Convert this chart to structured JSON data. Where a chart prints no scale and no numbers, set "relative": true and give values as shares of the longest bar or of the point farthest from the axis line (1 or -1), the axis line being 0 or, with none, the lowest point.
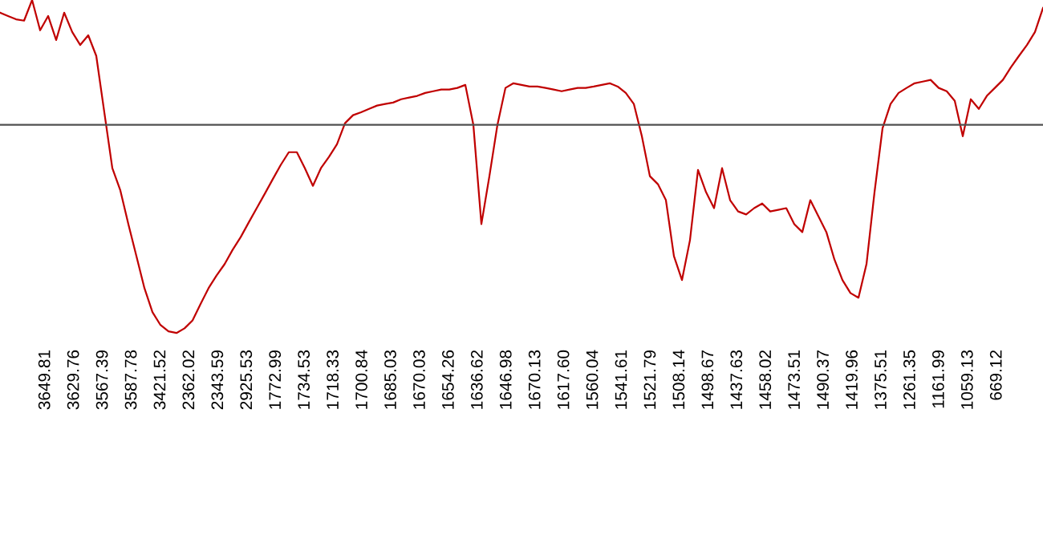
{
  "chart_data": {
    "type": "line",
    "relative": true,
    "tick_labels": false,
    "categories": [
      null,
      null,
      null,
      null,
      null,
      null,
      null,
      null,
      null,
      null,
      null,
      null,
      null,
      null,
      null,
      null,
      null,
      null,
      null,
      null,
      null,
      null,
      null,
      null,
      null,
      null,
      null,
      null,
      null,
      null,
      null,
      null,
      null,
      null,
      null,
      null,
      null,
      null,
      null,
      null,
      null,
      null,
      null,
      null,
      null,
      null,
      null,
      null,
      null,
      null,
      null,
      null,
      null,
      null,
      null,
      null,
      null,
      null,
      null,
      null,
      null,
      null,
      null,
      null,
      null,
      null,
      null,
      null,
      null,
      null,
      null,
      null,
      null,
      null,
      null,
      null,
      null,
      null,
      null,
      null,
      null,
      null,
      null,
      null,
      null,
      null,
      null,
      null,
      null,
      null,
      null,
      null,
      null,
      null,
      null,
      null,
      null,
      null,
      null,
      null,
      null,
      null,
      null,
      null,
      null,
      null,
      null,
      null,
      null,
      null,
      null,
      null,
      null,
      null,
      null,
      null,
      null,
      null,
      null,
      null,
      null,
      null,
      null,
      null,
      null,
      null,
      null,
      null,
      null,
      null,
      null
    ],
    "series": [
      {
        "color": "#c00000",
        "values": [
          0.962,
          0.952,
          0.942,
          0.938,
          1,
          0.909,
          0.952,
          0.88,
          0.962,
          0.904,
          0.865,
          0.894,
          0.832,
          0.663,
          0.495,
          0.428,
          0.327,
          0.231,
          0.135,
          0.063,
          0.024,
          0.005,
          0,
          0.014,
          0.038,
          0.087,
          0.135,
          0.173,
          0.207,
          0.25,
          0.288,
          0.332,
          0.375,
          0.418,
          0.462,
          0.505,
          0.543,
          0.543,
          0.495,
          0.442,
          0.495,
          0.529,
          0.567,
          0.63,
          0.654,
          0.663,
          0.673,
          0.683,
          0.688,
          0.692,
          0.702,
          0.707,
          0.712,
          0.721,
          0.726,
          0.731,
          0.731,
          0.736,
          0.745,
          0.625,
          0.327,
          0.471,
          0.625,
          0.736,
          0.75,
          0.745,
          0.74,
          0.74,
          0.736,
          0.731,
          0.726,
          0.731,
          0.736,
          0.736,
          0.74,
          0.745,
          0.75,
          0.74,
          0.721,
          0.688,
          0.591,
          0.471,
          0.447,
          0.399,
          0.231,
          0.159,
          0.279,
          0.49,
          0.423,
          0.375,
          0.495,
          0.399,
          0.365,
          0.356,
          0.375,
          0.389,
          0.365,
          0.37,
          0.375,
          0.327,
          0.303,
          0.399,
          0.351,
          0.303,
          0.221,
          0.159,
          0.12,
          0.106,
          0.207,
          0.423,
          0.615,
          0.688,
          0.721,
          0.736,
          0.75,
          0.755,
          0.76,
          0.736,
          0.726,
          0.697,
          0.591,
          0.702,
          0.673,
          0.712,
          0.736,
          0.76,
          0.798,
          0.832,
          0.865,
          0.904,
          0.976
        ]
      }
    ],
    "ref_lines": [
      {
        "axis": "y",
        "value": 0.625,
        "color": "#505050"
      }
    ],
    "annotations": [
      "3649.81",
      "3629.76",
      "3567.39",
      "3587.78",
      "3421.52",
      "2362.02",
      "2343.59",
      "2925.53",
      "1772.99",
      "1734.53",
      "1718.33",
      "1700.84",
      "1685.03",
      "1670.03",
      "1654.26",
      "1636.62",
      "1646.98",
      "1670.13",
      "1617.60",
      "1560.04",
      "1541.61",
      "1521.79",
      "1508.14",
      "1498.67",
      "1437.63",
      "1458.02",
      "1473.51",
      "1490.37",
      "1419.96",
      "1375.51",
      "1261.35",
      "1161.99",
      "1059.13",
      "669.12"
    ]
  }
}
